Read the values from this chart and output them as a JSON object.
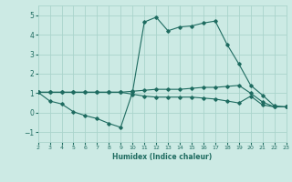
{
  "xlabel": "Humidex (Indice chaleur)",
  "xlim": [
    2,
    23
  ],
  "ylim": [
    -1.5,
    5.5
  ],
  "yticks": [
    -1,
    0,
    1,
    2,
    3,
    4,
    5
  ],
  "xticks": [
    2,
    3,
    4,
    5,
    6,
    7,
    8,
    9,
    10,
    11,
    12,
    13,
    14,
    15,
    16,
    17,
    18,
    19,
    20,
    21,
    22,
    23
  ],
  "background_color": "#cceae4",
  "grid_color": "#aad4cc",
  "line_color": "#1e6b60",
  "series1_x": [
    2,
    3,
    4,
    5,
    6,
    7,
    8,
    9,
    10,
    11,
    12,
    13,
    14,
    15,
    16,
    17,
    18,
    19,
    20,
    21,
    22,
    23
  ],
  "series1_y": [
    1.05,
    1.05,
    1.05,
    1.05,
    1.05,
    1.05,
    1.05,
    1.05,
    1.1,
    1.15,
    1.2,
    1.2,
    1.2,
    1.25,
    1.3,
    1.3,
    1.35,
    1.4,
    1.0,
    0.55,
    0.3,
    0.3
  ],
  "series2_x": [
    2,
    3,
    4,
    5,
    6,
    7,
    8,
    9,
    10,
    11,
    12,
    13,
    14,
    15,
    16,
    17,
    18,
    19,
    20,
    21,
    22,
    23
  ],
  "series2_y": [
    1.05,
    1.05,
    1.05,
    1.05,
    1.05,
    1.05,
    1.05,
    1.05,
    0.95,
    0.85,
    0.8,
    0.8,
    0.8,
    0.8,
    0.75,
    0.7,
    0.6,
    0.5,
    0.85,
    0.4,
    0.3,
    0.3
  ],
  "series3_x": [
    2,
    3,
    4,
    5,
    6,
    7,
    8,
    9,
    10,
    11,
    12,
    13,
    14,
    15,
    16,
    17,
    18,
    19,
    20,
    21,
    22,
    23
  ],
  "series3_y": [
    1.05,
    0.6,
    0.45,
    0.05,
    -0.15,
    -0.3,
    -0.55,
    -0.75,
    1.05,
    4.65,
    4.9,
    4.2,
    4.4,
    4.45,
    4.6,
    4.7,
    3.5,
    2.5,
    1.4,
    0.9,
    0.35,
    0.3
  ]
}
